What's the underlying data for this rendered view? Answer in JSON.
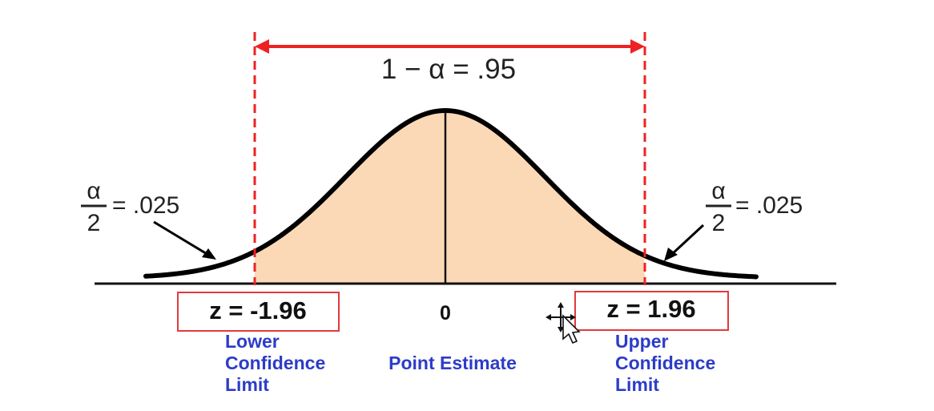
{
  "diagram": {
    "confidence": "1 − α = .95",
    "tail_left": {
      "numerator": "α",
      "denominator": "2",
      "value": "= .025"
    },
    "tail_right": {
      "numerator": "α",
      "denominator": "2",
      "value": "= .025"
    },
    "z_lower": "z = -1.96",
    "z_upper": "z = 1.96",
    "center_tick": "0",
    "lower_limit_lines": [
      "Lower",
      "Confidence",
      "Limit"
    ],
    "point_estimate": "Point Estimate",
    "upper_limit_lines": [
      "Upper",
      "Confidence",
      "Limit"
    ],
    "colors": {
      "fill": "#fcd9b6",
      "curve": "#000000",
      "dashed": "#ee2222",
      "box_border": "#e23a3a",
      "label_blue": "#2c3cc7"
    },
    "icons": {
      "cursor": "move-cursor-icon"
    }
  }
}
